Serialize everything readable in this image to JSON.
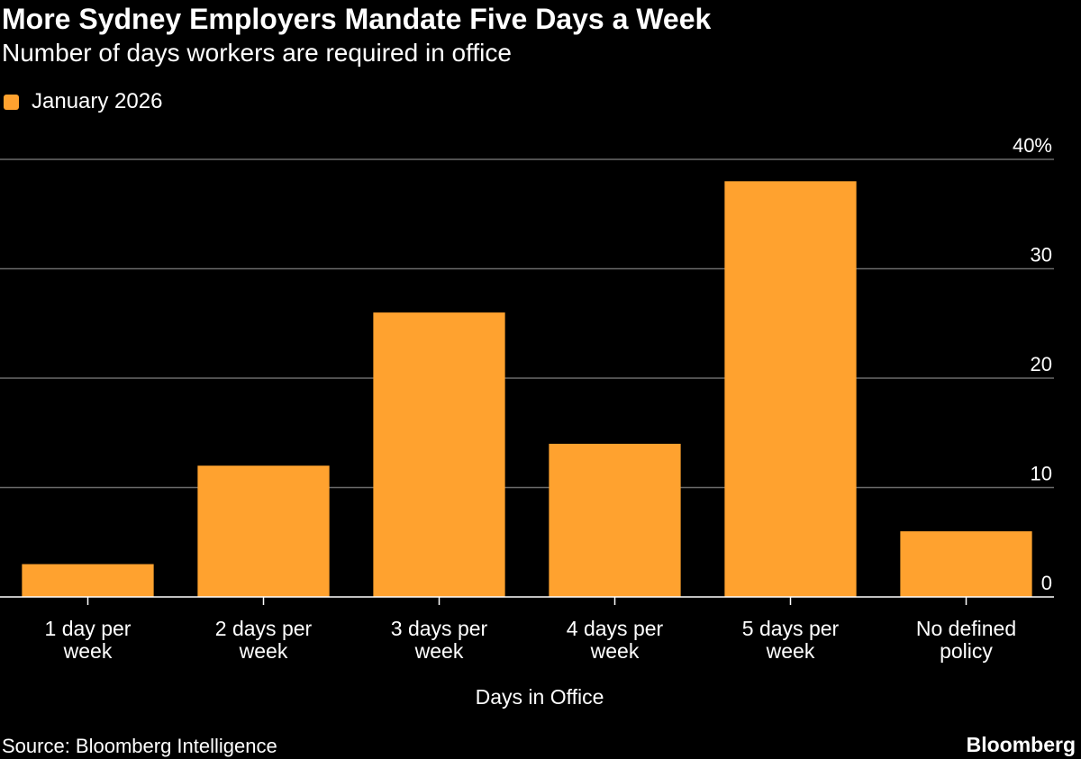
{
  "header": {
    "title": "More Sydney Employers Mandate Five Days a Week",
    "subtitle": "Number of days workers are required in office"
  },
  "footer": {
    "source": "Source: Bloomberg Intelligence",
    "brand": "Bloomberg"
  },
  "colors": {
    "bar": "#FFA22F",
    "grid": "#6a6a6a",
    "axis": "#ffffff"
  },
  "chart_data": {
    "type": "bar",
    "title": "More Sydney Employers Mandate Five Days a Week",
    "subtitle": "Number of days workers are required in office",
    "xlabel": "Days in Office",
    "ylabel": "",
    "categories": [
      [
        "1 day per",
        "week"
      ],
      [
        "2 days per",
        "week"
      ],
      [
        "3 days per",
        "week"
      ],
      [
        "4 days per",
        "week"
      ],
      [
        "5 days per",
        "week"
      ],
      [
        "No defined",
        "policy"
      ]
    ],
    "series": [
      {
        "name": "January 2026",
        "values": [
          3,
          12,
          26,
          14,
          38,
          6
        ]
      }
    ],
    "ylim": [
      0,
      40
    ],
    "yticks": [
      "0",
      "10",
      "20",
      "30",
      "40%"
    ],
    "grid": true,
    "yaxis_side": "right",
    "legend": "top-left"
  }
}
